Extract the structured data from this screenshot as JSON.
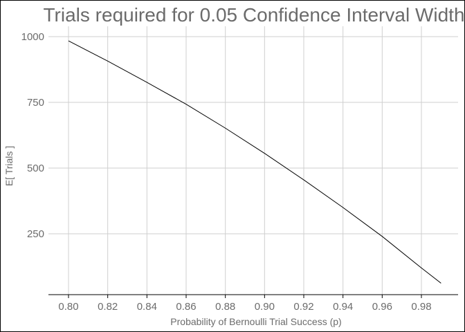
{
  "chart_data": {
    "type": "line",
    "title": "Trials required for 0.05 Confidence Interval Width",
    "xlabel": "Probability of Bernoulli Trial Success (p)",
    "ylabel": "E[ Trials ]",
    "xlim": [
      0.795,
      0.995
    ],
    "ylim": [
      40,
      1030
    ],
    "xticks": [
      "0.80",
      "0.82",
      "0.84",
      "0.86",
      "0.88",
      "0.90",
      "0.92",
      "0.94",
      "0.96",
      "0.98"
    ],
    "yticks": [
      "250",
      "500",
      "750",
      "1000"
    ],
    "grid": true,
    "x": [
      0.8,
      0.82,
      0.84,
      0.86,
      0.88,
      0.9,
      0.92,
      0.94,
      0.96,
      0.98,
      0.99
    ],
    "y": [
      984,
      907,
      826,
      743,
      652,
      556,
      455,
      350,
      240,
      120,
      62
    ]
  }
}
